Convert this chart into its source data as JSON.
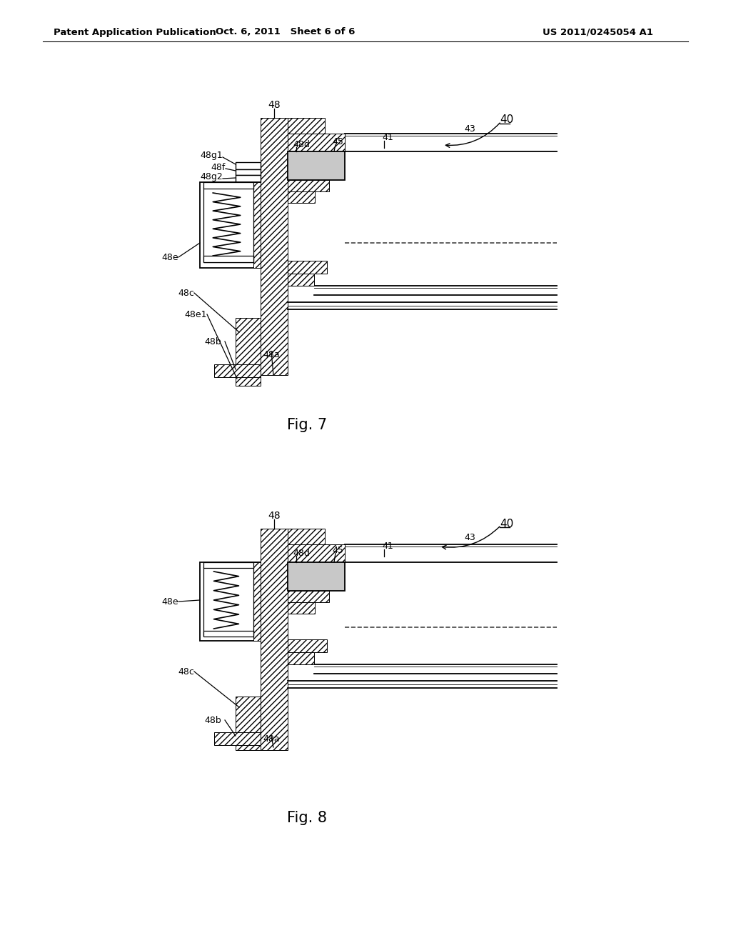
{
  "bg_color": "#ffffff",
  "header_left": "Patent Application Publication",
  "header_center": "Oct. 6, 2011   Sheet 6 of 6",
  "header_right": "US 2011/0245054 A1",
  "fig7_label": "Fig. 7",
  "fig8_label": "Fig. 8",
  "fig_width": 10.24,
  "fig_height": 13.2
}
